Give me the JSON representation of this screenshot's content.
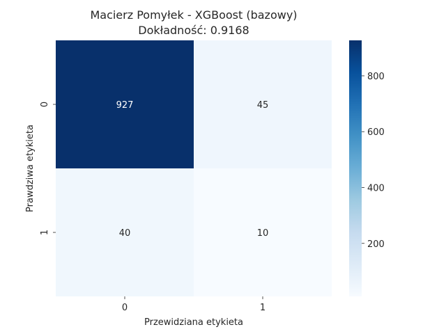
{
  "chart_data": {
    "type": "heatmap",
    "title": "Macierz Pomyłek - XGBoost (bazowy)",
    "subtitle": "Dokładność: 0.9168",
    "xlabel": "Przewidziana etykieta",
    "ylabel": "Prawdziwa etykieta",
    "x_categories": [
      "0",
      "1"
    ],
    "y_categories": [
      "0",
      "1"
    ],
    "values": [
      [
        927,
        45
      ],
      [
        40,
        10
      ]
    ],
    "colormap": "Blues",
    "colorbar": {
      "min": 10,
      "max": 927,
      "ticks": [
        200,
        400,
        600,
        800
      ]
    },
    "grid": false,
    "legend": "colorbar-right"
  }
}
